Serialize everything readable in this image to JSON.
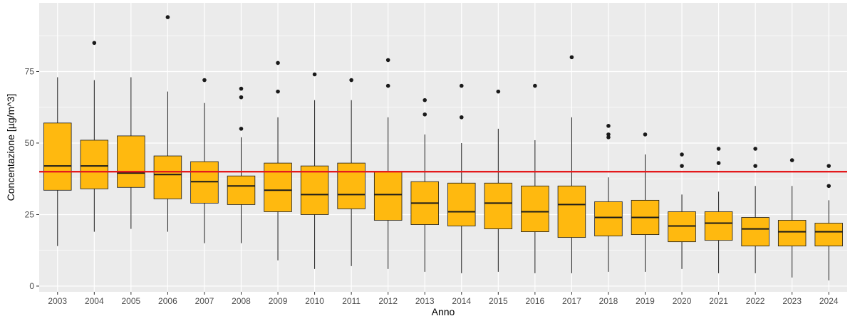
{
  "chart_data": {
    "type": "boxplot",
    "xlabel": "Anno",
    "ylabel": "Concentazione [µg/m^3]",
    "ylim": [
      -2,
      99
    ],
    "y_ticks": [
      0,
      25,
      50,
      75
    ],
    "grid": true,
    "reference_line": {
      "value": 40,
      "color": "#e41a1c"
    },
    "colors": {
      "box_fill": "#ffb90f",
      "box_stroke": "#1a1a1a",
      "panel_bg": "#ebebeb",
      "grid": "#ffffff"
    },
    "categories": [
      "2003",
      "2004",
      "2005",
      "2006",
      "2007",
      "2008",
      "2009",
      "2010",
      "2011",
      "2012",
      "2013",
      "2014",
      "2015",
      "2016",
      "2017",
      "2018",
      "2019",
      "2020",
      "2021",
      "2022",
      "2023",
      "2024"
    ],
    "boxes": [
      {
        "year": "2003",
        "lower_whisker": 14,
        "q1": 33.5,
        "median": 42,
        "q3": 57,
        "upper_whisker": 73,
        "outliers": []
      },
      {
        "year": "2004",
        "lower_whisker": 19,
        "q1": 34,
        "median": 42,
        "q3": 51,
        "upper_whisker": 72,
        "outliers": [
          85
        ]
      },
      {
        "year": "2005",
        "lower_whisker": 20,
        "q1": 34.5,
        "median": 39.5,
        "q3": 52.5,
        "upper_whisker": 73,
        "outliers": []
      },
      {
        "year": "2006",
        "lower_whisker": 19,
        "q1": 30.5,
        "median": 39,
        "q3": 45.5,
        "upper_whisker": 68,
        "outliers": [
          94
        ]
      },
      {
        "year": "2007",
        "lower_whisker": 15,
        "q1": 29,
        "median": 36.5,
        "q3": 43.5,
        "upper_whisker": 64,
        "outliers": [
          72
        ]
      },
      {
        "year": "2008",
        "lower_whisker": 15,
        "q1": 28.5,
        "median": 35,
        "q3": 38.5,
        "upper_whisker": 52,
        "outliers": [
          55,
          66,
          69
        ]
      },
      {
        "year": "2009",
        "lower_whisker": 9,
        "q1": 26,
        "median": 33.5,
        "q3": 43,
        "upper_whisker": 59,
        "outliers": [
          68,
          78
        ]
      },
      {
        "year": "2010",
        "lower_whisker": 6,
        "q1": 25,
        "median": 32,
        "q3": 42,
        "upper_whisker": 65,
        "outliers": [
          74
        ]
      },
      {
        "year": "2011",
        "lower_whisker": 7,
        "q1": 27,
        "median": 32,
        "q3": 43,
        "upper_whisker": 65,
        "outliers": [
          72
        ]
      },
      {
        "year": "2012",
        "lower_whisker": 6,
        "q1": 23,
        "median": 32,
        "q3": 40,
        "upper_whisker": 59,
        "outliers": [
          70,
          79
        ]
      },
      {
        "year": "2013",
        "lower_whisker": 5,
        "q1": 21.5,
        "median": 29,
        "q3": 36.5,
        "upper_whisker": 53,
        "outliers": [
          60,
          65
        ]
      },
      {
        "year": "2014",
        "lower_whisker": 4.5,
        "q1": 21,
        "median": 26,
        "q3": 36,
        "upper_whisker": 50,
        "outliers": [
          59,
          70
        ]
      },
      {
        "year": "2015",
        "lower_whisker": 5,
        "q1": 20,
        "median": 29,
        "q3": 36,
        "upper_whisker": 55,
        "outliers": [
          68
        ]
      },
      {
        "year": "2016",
        "lower_whisker": 4.5,
        "q1": 19,
        "median": 26,
        "q3": 35,
        "upper_whisker": 51,
        "outliers": [
          70
        ]
      },
      {
        "year": "2017",
        "lower_whisker": 4.5,
        "q1": 17,
        "median": 28.5,
        "q3": 35,
        "upper_whisker": 59,
        "outliers": [
          80
        ]
      },
      {
        "year": "2018",
        "lower_whisker": 5,
        "q1": 17.5,
        "median": 24,
        "q3": 29.5,
        "upper_whisker": 38,
        "outliers": [
          52,
          53,
          56
        ]
      },
      {
        "year": "2019",
        "lower_whisker": 5,
        "q1": 18,
        "median": 24,
        "q3": 30,
        "upper_whisker": 46,
        "outliers": [
          53
        ]
      },
      {
        "year": "2020",
        "lower_whisker": 6,
        "q1": 15.5,
        "median": 21,
        "q3": 26,
        "upper_whisker": 32,
        "outliers": [
          42,
          46
        ]
      },
      {
        "year": "2021",
        "lower_whisker": 4.5,
        "q1": 16,
        "median": 22,
        "q3": 26,
        "upper_whisker": 33,
        "outliers": [
          43,
          48
        ]
      },
      {
        "year": "2022",
        "lower_whisker": 4.5,
        "q1": 14,
        "median": 20,
        "q3": 24,
        "upper_whisker": 35,
        "outliers": [
          42,
          48
        ]
      },
      {
        "year": "2023",
        "lower_whisker": 3,
        "q1": 14,
        "median": 19,
        "q3": 23,
        "upper_whisker": 35,
        "outliers": [
          44
        ]
      },
      {
        "year": "2024",
        "lower_whisker": 2,
        "q1": 14,
        "median": 19,
        "q3": 22,
        "upper_whisker": 30,
        "outliers": [
          35,
          42
        ]
      }
    ]
  }
}
